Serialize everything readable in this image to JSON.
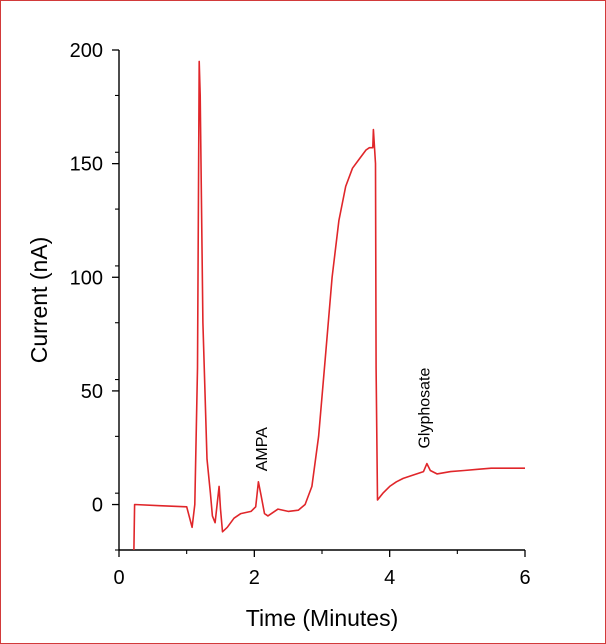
{
  "chart_data": {
    "type": "line",
    "title": "",
    "xlabel": "Time (Minutes)",
    "ylabel": "Current (nA)",
    "xlim": [
      0,
      6
    ],
    "ylim": [
      -20,
      200
    ],
    "x_ticks": [
      0,
      2,
      4,
      6
    ],
    "y_ticks": [
      0,
      50,
      100,
      150,
      200
    ],
    "grid": false,
    "color": "#e0262a",
    "series": [
      {
        "values_xy": [
          [
            0.22,
            -20
          ],
          [
            0.23,
            0
          ],
          [
            0.6,
            -0.5
          ],
          [
            1.0,
            -1
          ],
          [
            1.08,
            -10
          ],
          [
            1.12,
            0
          ],
          [
            1.16,
            60
          ],
          [
            1.185,
            195
          ],
          [
            1.2,
            180
          ],
          [
            1.24,
            80
          ],
          [
            1.3,
            20
          ],
          [
            1.35,
            5
          ],
          [
            1.38,
            -5
          ],
          [
            1.42,
            -8
          ],
          [
            1.45,
            0
          ],
          [
            1.48,
            8
          ],
          [
            1.5,
            -2
          ],
          [
            1.53,
            -12
          ],
          [
            1.6,
            -10
          ],
          [
            1.7,
            -6
          ],
          [
            1.8,
            -4
          ],
          [
            1.95,
            -3
          ],
          [
            2.02,
            -1
          ],
          [
            2.06,
            10
          ],
          [
            2.1,
            4
          ],
          [
            2.15,
            -4
          ],
          [
            2.2,
            -5
          ],
          [
            2.35,
            -2
          ],
          [
            2.5,
            -3
          ],
          [
            2.65,
            -2.5
          ],
          [
            2.75,
            0
          ],
          [
            2.85,
            8
          ],
          [
            2.95,
            30
          ],
          [
            3.05,
            65
          ],
          [
            3.15,
            100
          ],
          [
            3.25,
            125
          ],
          [
            3.35,
            140
          ],
          [
            3.45,
            148
          ],
          [
            3.55,
            152
          ],
          [
            3.65,
            156
          ],
          [
            3.7,
            157
          ],
          [
            3.75,
            157
          ],
          [
            3.76,
            165
          ],
          [
            3.79,
            150
          ],
          [
            3.8,
            60
          ],
          [
            3.82,
            2
          ],
          [
            3.9,
            5
          ],
          [
            4.0,
            8
          ],
          [
            4.1,
            10
          ],
          [
            4.2,
            11.5
          ],
          [
            4.35,
            13
          ],
          [
            4.45,
            14
          ],
          [
            4.5,
            14.5
          ],
          [
            4.55,
            18
          ],
          [
            4.6,
            15
          ],
          [
            4.7,
            13.5
          ],
          [
            4.9,
            14.5
          ],
          [
            5.1,
            15
          ],
          [
            5.3,
            15.5
          ],
          [
            5.5,
            16
          ],
          [
            5.7,
            16
          ],
          [
            6.0,
            16
          ]
        ]
      }
    ],
    "annotations": [
      {
        "text": "AMPA",
        "x": 2.1,
        "y": 12
      },
      {
        "text": "Glyphosate",
        "x": 4.5,
        "y": 22
      }
    ]
  }
}
